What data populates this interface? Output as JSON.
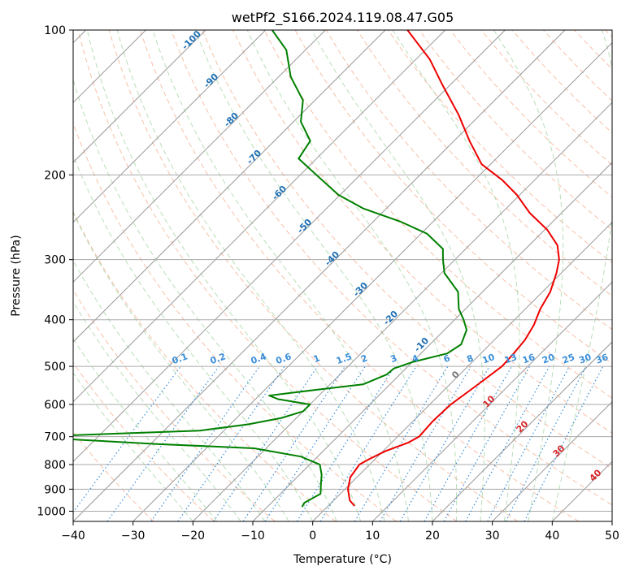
{
  "chart_data": {
    "type": "skew-t",
    "title": "wetPf2_S166.2024.119.08.47.G05",
    "xlabel": "Temperature (°C)",
    "ylabel": "Pressure (hPa)",
    "xlim": [
      -40,
      50
    ],
    "ylim": [
      1050,
      100
    ],
    "y_scale": "log",
    "grid": true,
    "x_ticks": [
      -40,
      -30,
      -20,
      -10,
      0,
      10,
      20,
      30,
      40,
      50
    ],
    "y_ticks": [
      1000,
      900,
      800,
      700,
      600,
      500,
      400,
      300,
      200,
      100
    ],
    "isotherm_labels": [
      -100,
      -90,
      -80,
      -70,
      -60,
      -50,
      -40,
      -30,
      -20,
      -10
    ],
    "mixing_ratio_labels": [
      0.1,
      0.2,
      0.4,
      0.6,
      1,
      1.5,
      2,
      3,
      4,
      6,
      8,
      10,
      13,
      16,
      20,
      25,
      30,
      36
    ],
    "wet_isotherm_labels": [
      0,
      10,
      20,
      30,
      40
    ],
    "colors": {
      "temperature": "#ee0000",
      "dewpoint": "#008000",
      "isotherm": "#999999",
      "dry_adiabat": "#f4a582",
      "moist_adiabat": "#a6d6a6",
      "mixing_ratio": "#3a8fd9",
      "isotherm_label": "#1f6fb4",
      "wet_label": "#d62728"
    },
    "series": [
      {
        "name": "Temperature",
        "points": [
          [
            975,
            4.4
          ],
          [
            950,
            2.7
          ],
          [
            900,
            0.5
          ],
          [
            850,
            -1.1
          ],
          [
            800,
            -1.7
          ],
          [
            780,
            -1.0
          ],
          [
            750,
            0.4
          ],
          [
            720,
            2.8
          ],
          [
            700,
            3.6
          ],
          [
            650,
            3.3
          ],
          [
            600,
            3.5
          ],
          [
            550,
            4.6
          ],
          [
            500,
            5.7
          ],
          [
            470,
            5.5
          ],
          [
            440,
            5.1
          ],
          [
            410,
            4.1
          ],
          [
            380,
            2.5
          ],
          [
            350,
            1.3
          ],
          [
            320,
            -0.8
          ],
          [
            300,
            -2.6
          ],
          [
            280,
            -5.3
          ],
          [
            260,
            -9.6
          ],
          [
            240,
            -15.3
          ],
          [
            220,
            -20.5
          ],
          [
            205,
            -25.4
          ],
          [
            190,
            -31.5
          ],
          [
            170,
            -37.4
          ],
          [
            150,
            -43.6
          ],
          [
            130,
            -51.3
          ],
          [
            115,
            -57.7
          ],
          [
            100,
            -66.3
          ]
        ]
      },
      {
        "name": "Dewpoint",
        "points": [
          [
            980,
            -4.2
          ],
          [
            960,
            -4.5
          ],
          [
            920,
            -3.3
          ],
          [
            880,
            -4.8
          ],
          [
            840,
            -6.3
          ],
          [
            800,
            -8.3
          ],
          [
            770,
            -12.8
          ],
          [
            740,
            -22.0
          ],
          [
            725,
            -39.0
          ],
          [
            710,
            -53.0
          ],
          [
            700,
            -61.0
          ],
          [
            680,
            -34.0
          ],
          [
            660,
            -27.0
          ],
          [
            640,
            -22.5
          ],
          [
            620,
            -20.0
          ],
          [
            600,
            -20.0
          ],
          [
            585,
            -26.2
          ],
          [
            575,
            -28.3
          ],
          [
            560,
            -21.7
          ],
          [
            545,
            -14.5
          ],
          [
            520,
            -12.2
          ],
          [
            505,
            -12.0
          ],
          [
            490,
            -10.0
          ],
          [
            470,
            -5.6
          ],
          [
            450,
            -4.8
          ],
          [
            420,
            -6.3
          ],
          [
            400,
            -8.5
          ],
          [
            380,
            -11.1
          ],
          [
            350,
            -14.1
          ],
          [
            320,
            -19.5
          ],
          [
            300,
            -22.0
          ],
          [
            285,
            -23.8
          ],
          [
            265,
            -29.0
          ],
          [
            250,
            -35.5
          ],
          [
            235,
            -43.8
          ],
          [
            220,
            -50.3
          ],
          [
            200,
            -57.3
          ],
          [
            185,
            -63.0
          ],
          [
            170,
            -64.0
          ],
          [
            155,
            -68.8
          ],
          [
            140,
            -72.0
          ],
          [
            125,
            -78.0
          ],
          [
            110,
            -83.2
          ],
          [
            100,
            -88.9
          ]
        ]
      }
    ]
  }
}
